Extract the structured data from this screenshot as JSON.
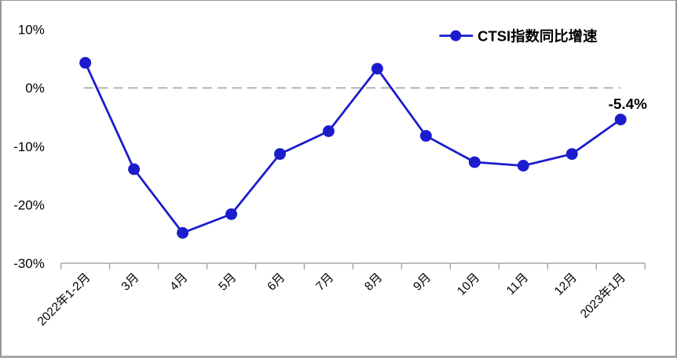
{
  "chart_data": {
    "type": "line",
    "legend": "CTSI指数同比增速",
    "legend_position": "top-right",
    "categories": [
      "2022年1-2月",
      "3月",
      "4月",
      "5月",
      "6月",
      "7月",
      "8月",
      "9月",
      "10月",
      "11月",
      "12月",
      "2023年1月"
    ],
    "values": [
      4.3,
      -13.9,
      -24.8,
      -21.6,
      -11.3,
      -7.4,
      3.3,
      -8.2,
      -12.7,
      -13.3,
      -11.3,
      -5.4
    ],
    "unit": "%",
    "ylim": [
      -30,
      10
    ],
    "ytick_step": 10,
    "ytick_labels": [
      "10%",
      "0%",
      "-10%",
      "-20%",
      "-30%"
    ],
    "last_point_label": "-5.4%",
    "zero_line_style": "dashed",
    "grid": "zero-line-only",
    "colors": {
      "line": "#1c1ccd",
      "marker": "#1c1ccd",
      "zero_line": "#b3b3b3",
      "axis": "#a6a6a6",
      "text": "#000000"
    }
  }
}
